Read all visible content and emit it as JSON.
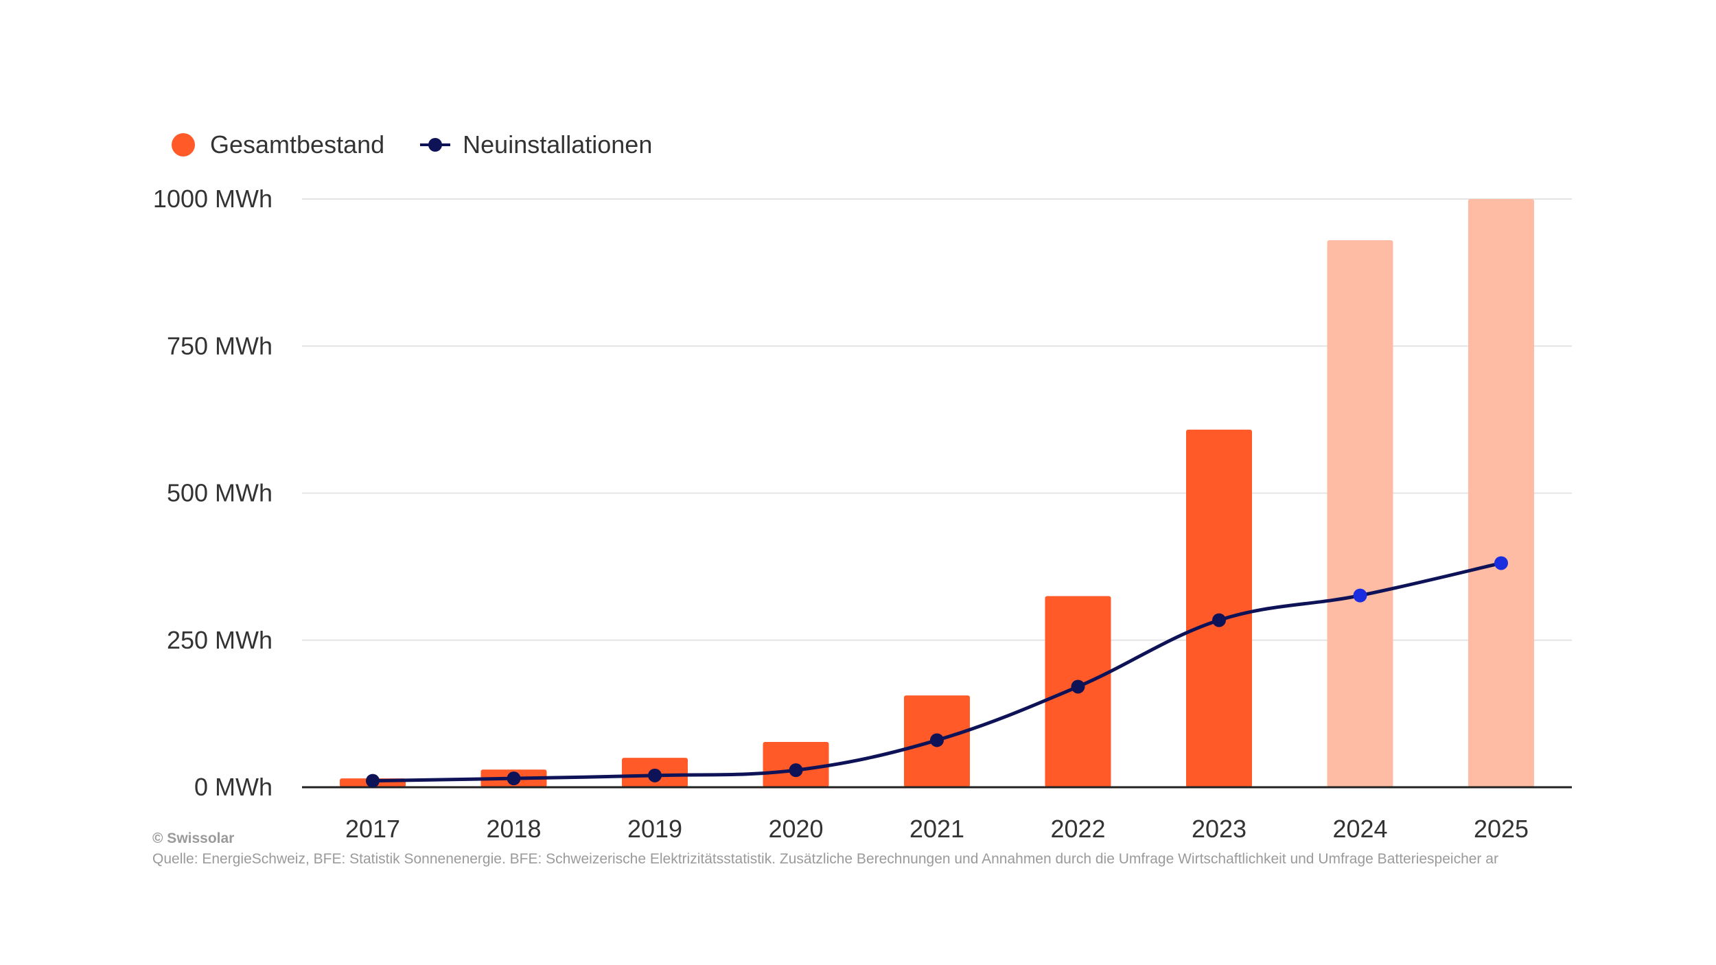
{
  "legend": [
    {
      "label": "Gesamtbestand",
      "color": "#ff5a28",
      "kind": "bar"
    },
    {
      "label": "Neuinstallationen",
      "color": "#0e1358",
      "kind": "line"
    }
  ],
  "footer": {
    "credit": "© Swissolar",
    "source": "Quelle: EnergieSchweiz, BFE: Statistik Sonnenenergie. BFE: Schweizerische Elektrizitätsstatistik. Zusätzliche Berechnungen und Annahmen durch die Umfrage Wirtschaftlichkeit und Umfrage Batteriespeicher ar"
  },
  "chart_data": {
    "type": "bar",
    "categories": [
      "2017",
      "2018",
      "2019",
      "2020",
      "2021",
      "2022",
      "2023",
      "2024",
      "2025"
    ],
    "ylim": [
      0,
      1000
    ],
    "yticks": [
      {
        "value": 0,
        "label": "0 MWh"
      },
      {
        "value": 250,
        "label": "250 MWh"
      },
      {
        "value": 500,
        "label": "500 MWh"
      },
      {
        "value": 750,
        "label": "750 MWh"
      },
      {
        "value": 1000,
        "label": "1000 MWh"
      }
    ],
    "grid": true,
    "legend_position": "top-left",
    "series": [
      {
        "name": "Gesamtbestand",
        "type": "bar",
        "color": "#ff5a28",
        "projected_color": "#ffbca4",
        "projected": [
          false,
          false,
          false,
          false,
          false,
          false,
          false,
          true,
          true
        ],
        "values": [
          15,
          30,
          50,
          77,
          156,
          325,
          608,
          930,
          1000
        ]
      },
      {
        "name": "Neuinstallationen",
        "type": "line",
        "color": "#0e1358",
        "projected_color": "#1a2ee0",
        "projected": [
          false,
          false,
          false,
          false,
          false,
          false,
          false,
          true,
          true
        ],
        "values": [
          11,
          15,
          20,
          29,
          80,
          171,
          284,
          326,
          381
        ]
      }
    ]
  }
}
